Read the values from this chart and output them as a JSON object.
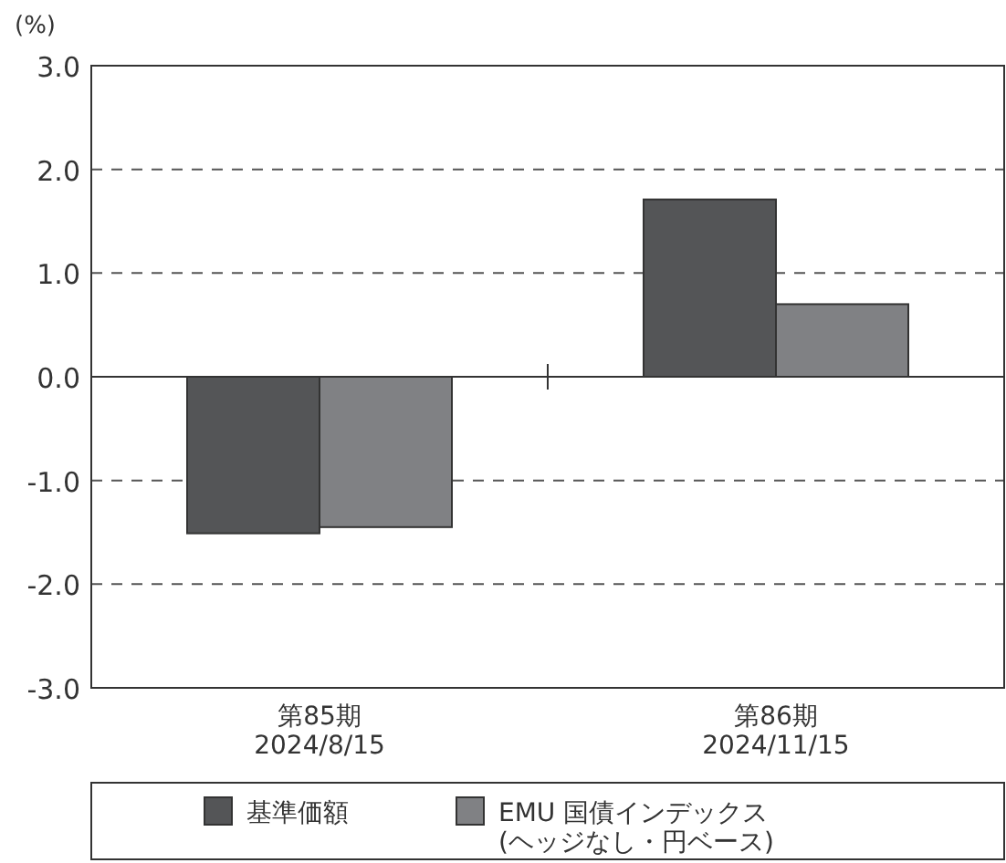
{
  "chart_data": {
    "type": "bar",
    "ylabel": "(%)",
    "categories": [
      "第85期\n2024/8/15",
      "第86期\n2024/11/15"
    ],
    "series": [
      {
        "name": "基準価額",
        "color": "#545557",
        "values": [
          -1.51,
          1.71
        ]
      },
      {
        "name": "EMU 国債インデックス\n(ヘッジなし・円ベース)",
        "color": "#808184",
        "values": [
          -1.45,
          0.7
        ]
      }
    ],
    "ylim": [
      -3,
      3
    ],
    "yticks": [
      {
        "value": -3,
        "label": "-3.0"
      },
      {
        "value": -2,
        "label": "-2.0"
      },
      {
        "value": -1,
        "label": "-1.0"
      },
      {
        "value": 0,
        "label": "0.0"
      },
      {
        "value": 1,
        "label": "1.0"
      },
      {
        "value": 2,
        "label": "2.0"
      },
      {
        "value": 3,
        "label": "3.0"
      }
    ],
    "grid": "y",
    "legend": "bottom"
  }
}
